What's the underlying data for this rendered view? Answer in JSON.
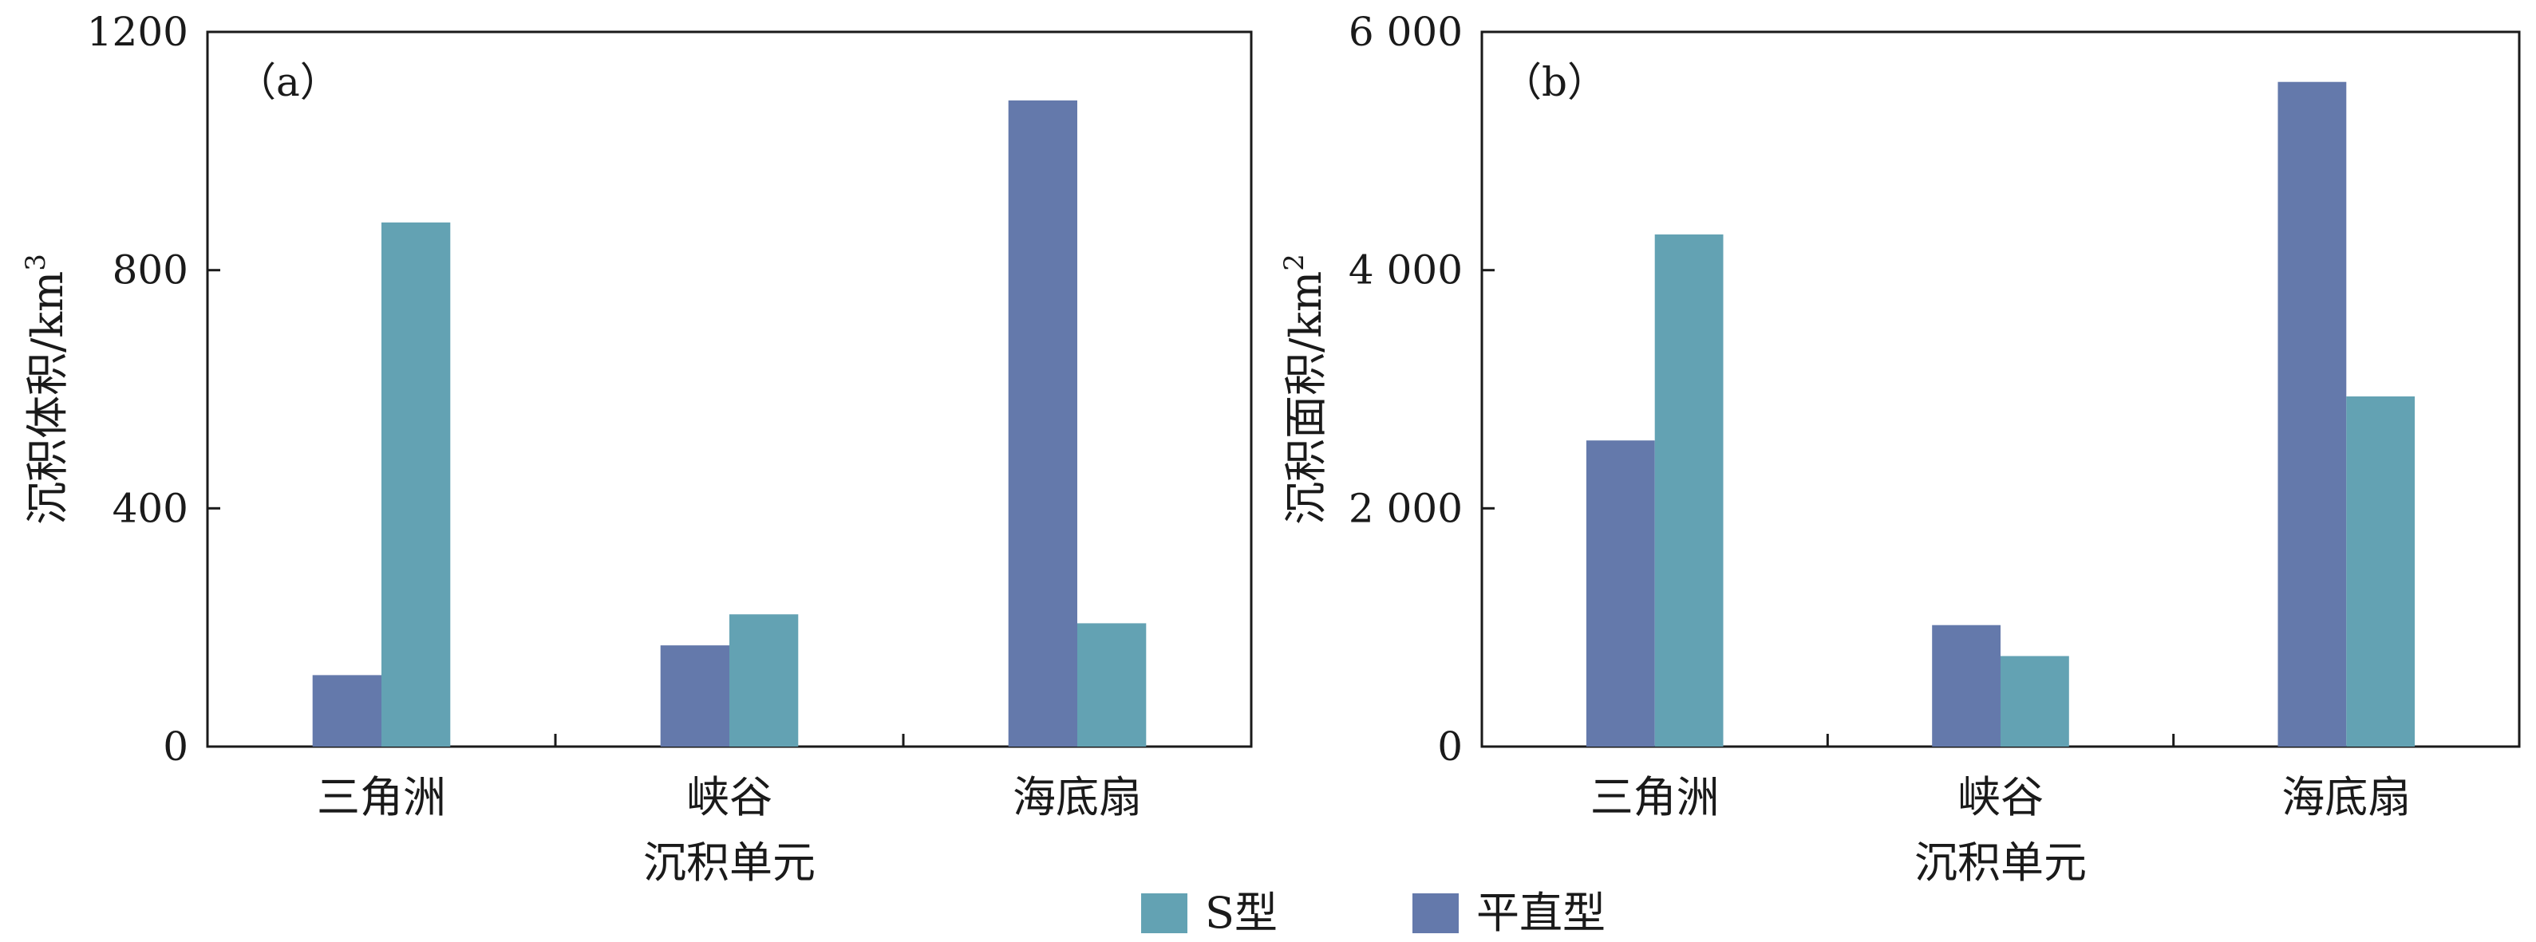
{
  "chart_data": [
    {
      "type": "bar",
      "panel_label": "（a）",
      "categories": [
        "三角洲",
        "峡谷",
        "海底扇"
      ],
      "series": [
        {
          "name": "平直型",
          "color": "#6479ab",
          "values": [
            120,
            170,
            1085
          ]
        },
        {
          "name": "S型",
          "color": "#63a2b3",
          "values": [
            880,
            222,
            207
          ]
        }
      ],
      "xlabel": "沉积单元",
      "ylabel": "沉积体积/km",
      "ylabel_superscript": "3",
      "ylim": [
        0,
        1200
      ],
      "yticks": [
        0,
        400,
        800,
        1200
      ],
      "ytick_labels": [
        "0",
        "400",
        "800",
        "1200"
      ],
      "grid": false
    },
    {
      "type": "bar",
      "panel_label": "（b）",
      "categories": [
        "三角洲",
        "峡谷",
        "海底扇"
      ],
      "series": [
        {
          "name": "平直型",
          "color": "#6479ab",
          "values": [
            2570,
            1020,
            5580
          ]
        },
        {
          "name": "S型",
          "color": "#63a2b3",
          "values": [
            4300,
            760,
            2940
          ]
        }
      ],
      "xlabel": "沉积单元",
      "ylabel": "沉积面积/km",
      "ylabel_superscript": "2",
      "ylim": [
        0,
        6000
      ],
      "yticks": [
        0,
        2000,
        4000,
        6000
      ],
      "ytick_labels": [
        "0",
        "2 000",
        "4 000",
        "6 000"
      ],
      "grid": false
    }
  ],
  "legend": {
    "placement": "bottom-center",
    "items": [
      {
        "label": "S型",
        "color": "#63a2b3"
      },
      {
        "label": "平直型",
        "color": "#6479ab"
      }
    ]
  }
}
